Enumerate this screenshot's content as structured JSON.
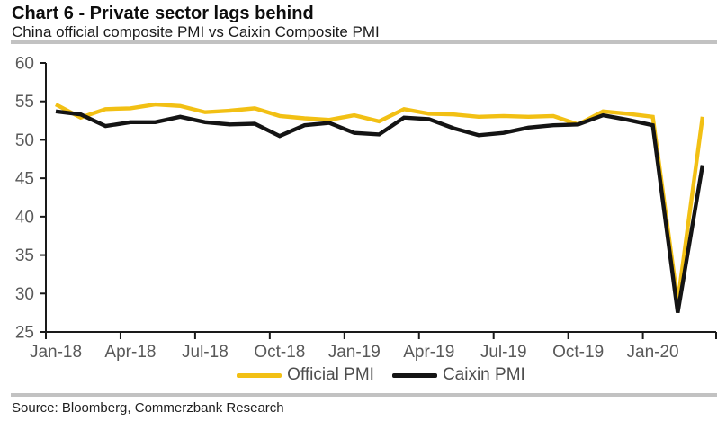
{
  "header": {
    "title": "Chart 6 - Private sector lags behind",
    "subtitle": "China official composite PMI vs Caixin Composite PMI"
  },
  "chart_data": {
    "type": "line",
    "x": [
      "Jan-18",
      "Feb-18",
      "Mar-18",
      "Apr-18",
      "May-18",
      "Jun-18",
      "Jul-18",
      "Aug-18",
      "Sep-18",
      "Oct-18",
      "Nov-18",
      "Dec-18",
      "Jan-19",
      "Feb-19",
      "Mar-19",
      "Apr-19",
      "May-19",
      "Jun-19",
      "Jul-19",
      "Aug-19",
      "Sep-19",
      "Oct-19",
      "Nov-19",
      "Dec-19",
      "Jan-20",
      "Feb-20",
      "Mar-20"
    ],
    "series": [
      {
        "name": "Official PMI",
        "color": "#f2c014",
        "values": [
          54.6,
          52.9,
          54.0,
          54.1,
          54.6,
          54.4,
          53.6,
          53.8,
          54.1,
          53.1,
          52.8,
          52.6,
          53.2,
          52.4,
          54.0,
          53.4,
          53.3,
          53.0,
          53.1,
          53.0,
          53.1,
          52.0,
          53.7,
          53.4,
          53.0,
          28.9,
          53.0
        ]
      },
      {
        "name": "Caixin PMI",
        "color": "#141414",
        "values": [
          53.7,
          53.3,
          51.8,
          52.3,
          52.3,
          53.0,
          52.3,
          52.0,
          52.1,
          50.5,
          51.9,
          52.2,
          50.9,
          50.7,
          52.9,
          52.7,
          51.5,
          50.6,
          50.9,
          51.6,
          51.9,
          52.0,
          53.2,
          52.6,
          51.9,
          27.5,
          46.7
        ]
      }
    ],
    "ylim": [
      25,
      60
    ],
    "yticks": [
      25,
      30,
      35,
      40,
      45,
      50,
      55,
      60
    ],
    "xtick_labels": [
      "Jan-18",
      "Apr-18",
      "Jul-18",
      "Oct-18",
      "Jan-19",
      "Apr-19",
      "Jul-19",
      "Oct-19",
      "Jan-20"
    ],
    "grid": false,
    "legend_position": "bottom",
    "axis_color": "#1a1a1a",
    "tick_label_color": "#595959"
  },
  "footer": {
    "source": "Source: Bloomberg, Commerzbank Research"
  }
}
